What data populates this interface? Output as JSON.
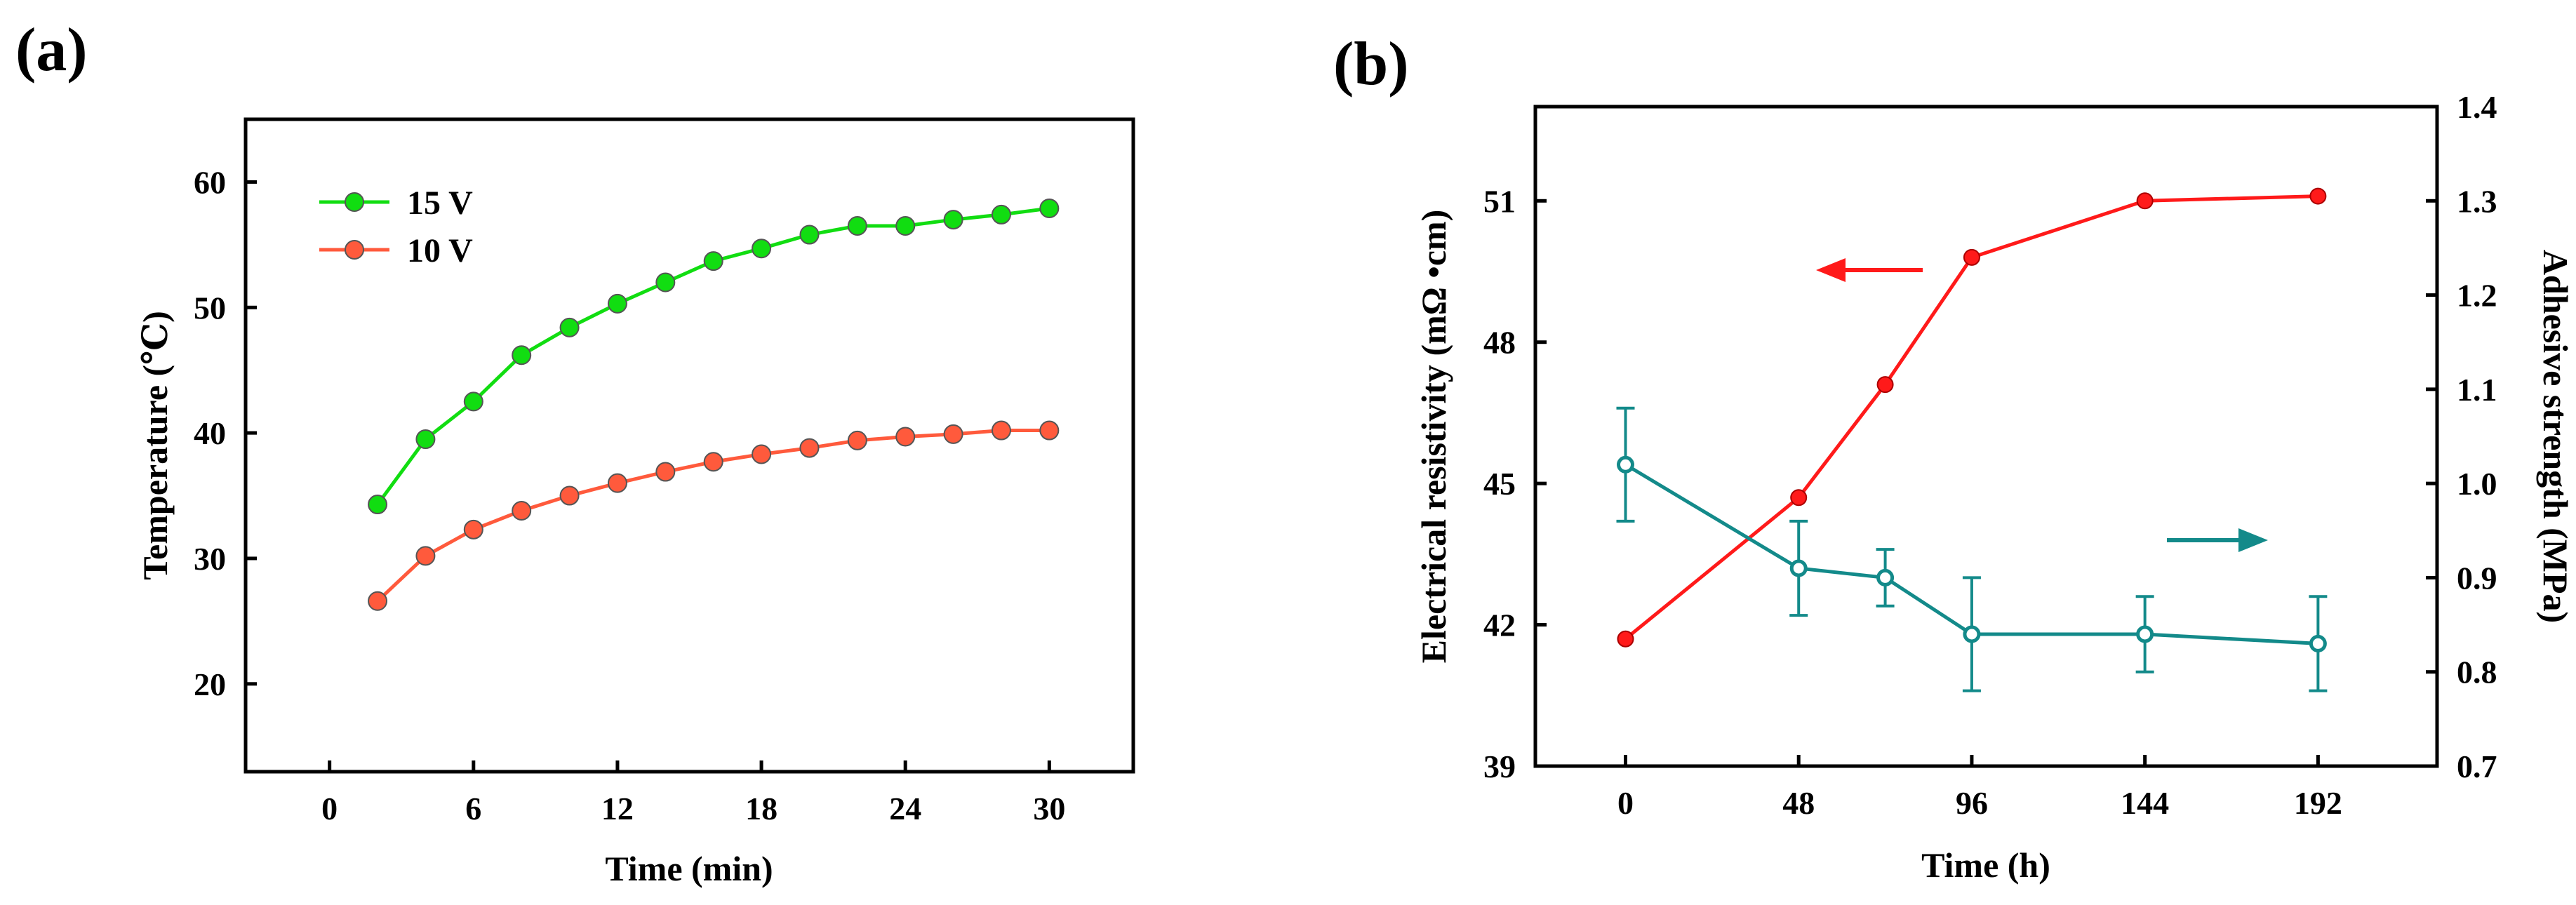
{
  "chart_data": [
    {
      "panel_label": "(a)",
      "type": "line",
      "xlabel": "Time (min)",
      "ylabel": "Temperature (℃)",
      "xlim": [
        -3.5,
        33.5
      ],
      "ylim": [
        13,
        65
      ],
      "xticks": [
        0,
        6,
        12,
        18,
        24,
        30
      ],
      "yticks": [
        20,
        30,
        40,
        50,
        60
      ],
      "x": [
        2,
        4,
        6,
        8,
        10,
        12,
        14,
        16,
        18,
        20,
        22,
        24,
        26,
        28,
        30
      ],
      "series": [
        {
          "name": "15 V",
          "color": "#11dd11",
          "values": [
            34.3,
            39.5,
            42.5,
            46.2,
            48.4,
            50.3,
            52.0,
            53.7,
            54.7,
            55.8,
            56.5,
            56.5,
            57.0,
            57.4,
            57.9
          ]
        },
        {
          "name": "10 V",
          "color": "#ff5a3c",
          "values": [
            26.6,
            30.2,
            32.3,
            33.8,
            35.0,
            36.0,
            36.9,
            37.7,
            38.3,
            38.8,
            39.4,
            39.7,
            39.9,
            40.2,
            40.2
          ]
        }
      ],
      "legend": "top-left"
    },
    {
      "panel_label": "(b)",
      "type": "line",
      "xlabel": "Time (h)",
      "ylabel_left": "Electrical resistivity (mΩ •cm)",
      "ylabel_right": "Adhesive strength (MPa)",
      "xlim": [
        -25,
        225
      ],
      "ylim_left": [
        39,
        53
      ],
      "ylim_right": [
        0.7,
        1.4
      ],
      "xticks": [
        0,
        48,
        96,
        144,
        192
      ],
      "yticks_left": [
        39,
        42,
        45,
        48,
        51
      ],
      "yticks_right": [
        "0.7",
        "0.8",
        "0.9",
        "1.0",
        "1.1",
        "1.2",
        "1.3",
        "1.4"
      ],
      "series": [
        {
          "name": "Electrical resistivity",
          "axis": "left",
          "color": "#ff1a1a",
          "x": [
            0,
            48,
            72,
            96,
            144,
            192
          ],
          "values": [
            41.7,
            44.7,
            47.1,
            49.8,
            51.0,
            51.1
          ]
        },
        {
          "name": "Adhesive strength",
          "axis": "right",
          "color": "#138a8a",
          "x": [
            0,
            48,
            72,
            96,
            144,
            192
          ],
          "values": [
            1.02,
            0.91,
            0.9,
            0.84,
            0.84,
            0.83
          ],
          "errors": [
            0.06,
            0.05,
            0.03,
            0.06,
            0.04,
            0.05
          ]
        }
      ],
      "annotations": [
        "left arrow points resistivity curve to left axis",
        "right arrow points strength curve to right axis"
      ]
    }
  ]
}
